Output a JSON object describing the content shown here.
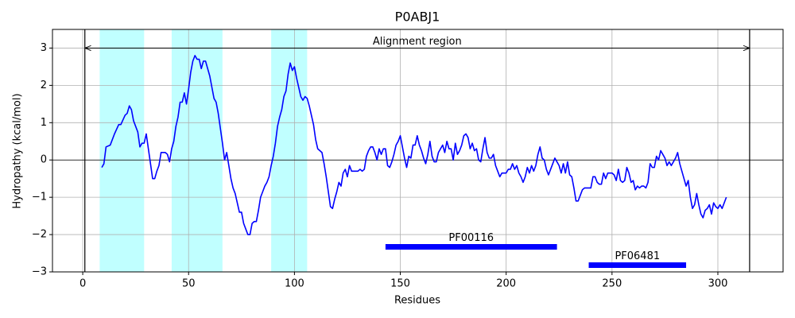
{
  "chart_data": {
    "type": "line",
    "title": "P0ABJ1",
    "x_label": "Residues",
    "y_label": "Hydropathy (kcal/mol)",
    "xlim": [
      -14.3,
      330.8
    ],
    "ylim": [
      -3,
      3.5
    ],
    "xticks": [
      0,
      50,
      100,
      150,
      200,
      250,
      300
    ],
    "yticks": [
      {
        "value": -3,
        "label": "−3"
      },
      {
        "value": -2,
        "label": "−2"
      },
      {
        "value": -1,
        "label": "−1"
      },
      0,
      1,
      2,
      3
    ],
    "grid": true,
    "color": "#0000ff",
    "zero_line": 0,
    "x": [
      9,
      10,
      11,
      13,
      15,
      17,
      18,
      20,
      21,
      22,
      23,
      24,
      26,
      27,
      28,
      29,
      30,
      31,
      32,
      33,
      34,
      35,
      36,
      37,
      39,
      40,
      41,
      42,
      43,
      44,
      45,
      46,
      47,
      48,
      49,
      50,
      51,
      52,
      53,
      54,
      55,
      56,
      57,
      58,
      59,
      60,
      61,
      62,
      63,
      64,
      65,
      66,
      67,
      68,
      69,
      70,
      71,
      72,
      73,
      74,
      75,
      76,
      77,
      78,
      79,
      80,
      81,
      82,
      83,
      84,
      85,
      86,
      87,
      88,
      89,
      90,
      91,
      92,
      93,
      94,
      95,
      96,
      97,
      98,
      99,
      100,
      101,
      102,
      103,
      104,
      105,
      106,
      107,
      108,
      109,
      110,
      111,
      113,
      114,
      115,
      116,
      117,
      118,
      119,
      120,
      121,
      122,
      123,
      124,
      125,
      126,
      127,
      128,
      130,
      131,
      132,
      133,
      134,
      135,
      136,
      137,
      138,
      139,
      140,
      141,
      142,
      143,
      144,
      145,
      146,
      147,
      148,
      149,
      150,
      151,
      152,
      153,
      154,
      155,
      156,
      157,
      158,
      159,
      160,
      161,
      162,
      163,
      164,
      165,
      166,
      167,
      168,
      169,
      170,
      171,
      172,
      173,
      174,
      175,
      176,
      177,
      178,
      179,
      180,
      181,
      182,
      183,
      184,
      185,
      186,
      187,
      188,
      189,
      190,
      191,
      192,
      193,
      194,
      195,
      196,
      197,
      198,
      199,
      200,
      201,
      202,
      203,
      204,
      205,
      206,
      207,
      208,
      209,
      210,
      211,
      212,
      213,
      214,
      215,
      216,
      217,
      218,
      219,
      220,
      221,
      222,
      223,
      224,
      225,
      226,
      227,
      228,
      229,
      230,
      231,
      232,
      233,
      234,
      235,
      236,
      237,
      238,
      239,
      240,
      241,
      242,
      243,
      244,
      245,
      246,
      247,
      248,
      249,
      250,
      251,
      252,
      253,
      254,
      255,
      256,
      257,
      258,
      259,
      260,
      261,
      262,
      263,
      264,
      265,
      266,
      267,
      268,
      269,
      270,
      271,
      272,
      273,
      274,
      275,
      276,
      277,
      278,
      279,
      280,
      281,
      282,
      283,
      284,
      285,
      286,
      287,
      288,
      289,
      290,
      291,
      292,
      293,
      294,
      295,
      296,
      297,
      298,
      299,
      300,
      301,
      302,
      303,
      304
    ],
    "values": [
      -0.2,
      -0.1,
      0.35,
      0.4,
      0.7,
      0.95,
      0.95,
      1.2,
      1.25,
      1.45,
      1.35,
      1.05,
      0.75,
      0.35,
      0.45,
      0.45,
      0.7,
      0.3,
      -0.1,
      -0.5,
      -0.5,
      -0.3,
      -0.15,
      0.2,
      0.2,
      0.15,
      -0.05,
      0.3,
      0.5,
      0.9,
      1.15,
      1.55,
      1.55,
      1.8,
      1.5,
      1.9,
      2.35,
      2.65,
      2.8,
      2.7,
      2.7,
      2.45,
      2.65,
      2.65,
      2.45,
      2.25,
      1.95,
      1.65,
      1.55,
      1.25,
      0.85,
      0.45,
      0.0,
      0.2,
      -0.15,
      -0.5,
      -0.75,
      -0.9,
      -1.15,
      -1.4,
      -1.4,
      -1.7,
      -1.85,
      -2.0,
      -2.0,
      -1.7,
      -1.65,
      -1.65,
      -1.35,
      -1.0,
      -0.85,
      -0.7,
      -0.6,
      -0.45,
      -0.15,
      0.1,
      0.45,
      0.9,
      1.15,
      1.35,
      1.7,
      1.85,
      2.3,
      2.6,
      2.4,
      2.5,
      2.2,
      1.95,
      1.7,
      1.6,
      1.7,
      1.65,
      1.45,
      1.2,
      0.95,
      0.55,
      0.3,
      0.2,
      -0.1,
      -0.45,
      -0.85,
      -1.25,
      -1.3,
      -1.05,
      -0.85,
      -0.6,
      -0.7,
      -0.35,
      -0.25,
      -0.45,
      -0.15,
      -0.3,
      -0.3,
      -0.3,
      -0.25,
      -0.3,
      -0.25,
      0.1,
      0.25,
      0.35,
      0.35,
      0.2,
      0.0,
      0.3,
      0.15,
      0.3,
      0.3,
      -0.15,
      -0.2,
      -0.05,
      0.15,
      0.4,
      0.5,
      0.65,
      0.35,
      0.05,
      -0.2,
      0.1,
      0.05,
      0.4,
      0.4,
      0.65,
      0.4,
      0.25,
      0.05,
      -0.1,
      0.15,
      0.5,
      0.1,
      -0.05,
      -0.05,
      0.2,
      0.3,
      0.4,
      0.2,
      0.5,
      0.3,
      0.3,
      0.0,
      0.45,
      0.15,
      0.25,
      0.4,
      0.65,
      0.7,
      0.6,
      0.3,
      0.45,
      0.25,
      0.3,
      0.0,
      -0.05,
      0.3,
      0.6,
      0.2,
      0.05,
      0.05,
      0.15,
      -0.15,
      -0.3,
      -0.45,
      -0.35,
      -0.35,
      -0.35,
      -0.25,
      -0.25,
      -0.1,
      -0.25,
      -0.15,
      -0.35,
      -0.45,
      -0.6,
      -0.45,
      -0.2,
      -0.35,
      -0.15,
      -0.3,
      -0.15,
      0.15,
      0.35,
      0.05,
      0.0,
      -0.25,
      -0.4,
      -0.25,
      -0.1,
      0.05,
      -0.05,
      -0.15,
      -0.35,
      -0.1,
      -0.35,
      -0.05,
      -0.4,
      -0.45,
      -0.75,
      -1.1,
      -1.1,
      -0.95,
      -0.8,
      -0.75,
      -0.75,
      -0.75,
      -0.75,
      -0.45,
      -0.45,
      -0.6,
      -0.65,
      -0.65,
      -0.35,
      -0.5,
      -0.35,
      -0.35,
      -0.35,
      -0.4,
      -0.55,
      -0.25,
      -0.55,
      -0.6,
      -0.55,
      -0.2,
      -0.35,
      -0.6,
      -0.55,
      -0.8,
      -0.7,
      -0.75,
      -0.7,
      -0.7,
      -0.75,
      -0.6,
      -0.1,
      -0.2,
      -0.2,
      0.1,
      0.0,
      0.25,
      0.15,
      0.05,
      -0.15,
      -0.05,
      -0.15,
      -0.05,
      0.05,
      0.2,
      -0.1,
      -0.3,
      -0.5,
      -0.7,
      -0.55,
      -1.0,
      -1.3,
      -1.2,
      -0.9,
      -1.2,
      -1.45,
      -1.55,
      -1.35,
      -1.3,
      -1.2,
      -1.45,
      -1.15,
      -1.25,
      -1.3,
      -1.2,
      -1.3,
      -1.15,
      -1.0
    ],
    "highlight_color": "#c0ffff",
    "highlight_regions": [
      {
        "start": 8,
        "end": 29
      },
      {
        "start": 42,
        "end": 66
      },
      {
        "start": 89,
        "end": 106
      }
    ],
    "alignment": {
      "label": "Alignment region",
      "start": 1,
      "end": 315,
      "y": 3
    },
    "domain_color": "#0000ff",
    "domains": [
      {
        "label": "PF00116",
        "start": 143,
        "end": 224,
        "y": -2.33
      },
      {
        "label": "PF06481",
        "start": 239,
        "end": 285,
        "y": -2.82
      }
    ]
  }
}
